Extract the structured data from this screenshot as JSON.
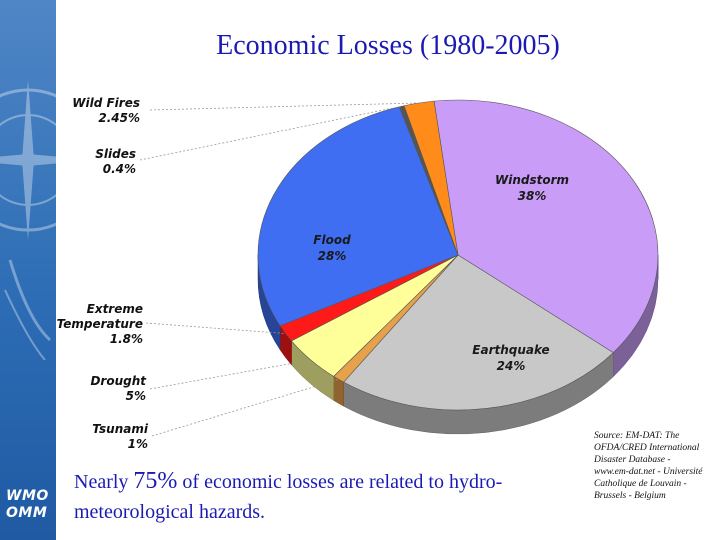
{
  "slide": {
    "title": "Economic Losses (1980-2005)",
    "note_prefix": "Nearly ",
    "note_percent": "75%",
    "note_suffix": " of economic losses are related to hydro-meteorological hazards.",
    "source": "Source: EM-DAT: The OFDA/CRED International Disaster Database - www.em-dat.net - Université Catholique de Louvain - Brussels - Belgium",
    "logo_line1": "WMO",
    "logo_line2": "OMM"
  },
  "colors": {
    "title": "#1b1bb3",
    "sidebar": "#2d6db5",
    "windstorm": "#c89cf7",
    "earthquake": "#c8c8c8",
    "tsunami": "#e6a24a",
    "drought": "#ffff99",
    "extreme_temperature": "#ff1a1a",
    "flood": "#3f6ef2",
    "slides": "#555555",
    "wild_fires": "#ff8c1a"
  },
  "chart_data": {
    "type": "pie",
    "title": "Economic Losses (1980-2005)",
    "style": "3d",
    "slices": [
      {
        "category": "Windstorm",
        "name": "Windstorm",
        "percent": "38%",
        "value": 38
      },
      {
        "category": "Earthquake",
        "name": "Earthquake",
        "percent": "24%",
        "value": 24
      },
      {
        "category": "Tsunami",
        "name": "Tsunami",
        "percent": "1%",
        "value": 1
      },
      {
        "category": "Drought",
        "name": "Drought",
        "percent": "5%",
        "value": 5
      },
      {
        "category": "Extreme Temperature",
        "name": "Extreme\nTemperature",
        "percent": "1.8%",
        "value": 1.8
      },
      {
        "category": "Flood",
        "name": "Flood",
        "percent": "28%",
        "value": 28
      },
      {
        "category": "Slides",
        "name": "Slides",
        "percent": "0.4%",
        "value": 0.4
      },
      {
        "category": "Wild Fires",
        "name": "Wild Fires",
        "percent": "2.45%",
        "value": 2.45
      }
    ]
  }
}
